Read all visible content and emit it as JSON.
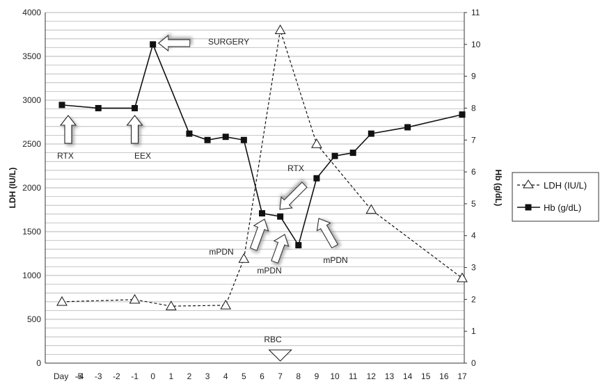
{
  "chart_data": {
    "type": "line",
    "x_categories": [
      "-5",
      "-4",
      "-3",
      "-2",
      "-1",
      "0",
      "1",
      "2",
      "3",
      "4",
      "5",
      "6",
      "7",
      "8",
      "9",
      "10",
      "11",
      "12",
      "13",
      "14",
      "15",
      "16",
      "17"
    ],
    "x_prefix_label": "Day",
    "ylabel_left": "LDH (IU/L)",
    "ylabel_right": "Hb (g/dL)",
    "ylim_left": [
      0,
      4000
    ],
    "ylim_right": [
      0,
      11
    ],
    "yticks_left": [
      0,
      500,
      1000,
      1500,
      2000,
      2500,
      3000,
      3500,
      4000
    ],
    "yticks_right": [
      0,
      1,
      2,
      3,
      4,
      5,
      6,
      7,
      8,
      9,
      10,
      11
    ],
    "grid": "horizontal",
    "legend_position": "right",
    "series": [
      {
        "name": "LDH (IU/L)",
        "axis": "left",
        "style": "dashed",
        "marker": "open-triangle",
        "points": [
          [
            -5,
            700
          ],
          [
            -1,
            725
          ],
          [
            1,
            650
          ],
          [
            4,
            660
          ],
          [
            5,
            1190
          ],
          [
            7,
            3800
          ],
          [
            9,
            2500
          ],
          [
            12,
            1750
          ],
          [
            17,
            970
          ]
        ]
      },
      {
        "name": "Hb (g/dL)",
        "axis": "right",
        "style": "solid",
        "marker": "filled-square",
        "points": [
          [
            -5,
            8.1
          ],
          [
            -3,
            8.0
          ],
          [
            -1,
            8.0
          ],
          [
            0,
            10.0
          ],
          [
            2,
            7.2
          ],
          [
            3,
            7.0
          ],
          [
            4,
            7.1
          ],
          [
            5,
            7.0
          ],
          [
            6,
            4.7
          ],
          [
            7,
            4.6
          ],
          [
            8,
            3.7
          ],
          [
            9,
            5.8
          ],
          [
            10,
            6.5
          ],
          [
            11,
            6.6
          ],
          [
            12,
            7.2
          ],
          [
            14,
            7.4
          ],
          [
            17,
            7.8
          ]
        ]
      }
    ],
    "annotations": [
      {
        "text": "SURGERY",
        "day": 0
      },
      {
        "text": "RTX",
        "day": -5
      },
      {
        "text": "EEX",
        "day": -1
      },
      {
        "text": "RTX",
        "day": 6
      },
      {
        "text": "mPDN",
        "day": 5
      },
      {
        "text": "mPDN",
        "day": 7
      },
      {
        "text": "mPDN",
        "day": 9
      },
      {
        "text": "RBC",
        "day": 7
      }
    ]
  },
  "colors": {
    "line": "#111111",
    "grid": "#b5b5b5",
    "arrow_fill": "#ffffff",
    "arrow_shadow": "#9a9a9a"
  }
}
